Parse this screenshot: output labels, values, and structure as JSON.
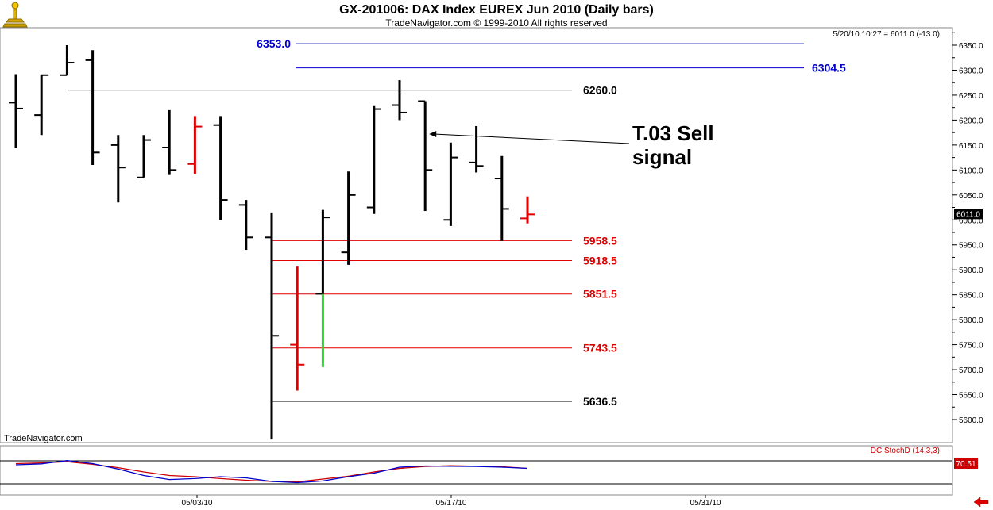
{
  "header": {
    "title": "GX-201006:  DAX Index EUREX Jun 2010  (Daily bars)",
    "copyright": "TradeNavigator.com © 1999-2010 All rights reserved",
    "quote": "5/20/10 10:27 = 6011.0 (-13.0)",
    "watermark": "TradeNavigator.com"
  },
  "colors": {
    "bar_default": "#000000",
    "bar_red": "#e00000",
    "bar_green": "#22dd22",
    "level_blue": "#0000cc",
    "level_red": "#e00000",
    "level_black": "#000000",
    "stoch_blue": "#0000cc",
    "stoch_red": "#cc0000"
  },
  "chart_data": {
    "type": "ohlc",
    "price_axis": {
      "range": [
        5560,
        6380
      ],
      "ticks": [
        "5600.0",
        "5650.0",
        "5700.0",
        "5750.0",
        "5800.0",
        "5850.0",
        "5900.0",
        "5950.0",
        "6000.0",
        "6050.0",
        "6100.0",
        "6150.0",
        "6200.0",
        "6250.0",
        "6300.0",
        "6350.0"
      ],
      "last_price_label": "6011.0"
    },
    "x_axis": {
      "ticks": [
        "05/03/10",
        "05/17/10",
        "05/31/10"
      ]
    },
    "bars": [
      {
        "x": 1,
        "o": 6235,
        "h": 6292,
        "l": 6145,
        "c": 6223,
        "color": "black"
      },
      {
        "x": 2,
        "o": 6210,
        "h": 6290,
        "l": 6170,
        "c": 6290,
        "color": "black"
      },
      {
        "x": 3,
        "o": 6290,
        "h": 6350,
        "l": 6290,
        "c": 6315,
        "color": "black"
      },
      {
        "x": 4,
        "o": 6320,
        "h": 6340,
        "l": 6110,
        "c": 6135,
        "color": "black"
      },
      {
        "x": 5,
        "o": 6150,
        "h": 6170,
        "l": 6035,
        "c": 6105,
        "color": "black"
      },
      {
        "x": 6,
        "o": 6085,
        "h": 6170,
        "l": 6085,
        "c": 6160,
        "color": "black"
      },
      {
        "x": 7,
        "o": 6145,
        "h": 6220,
        "l": 6090,
        "c": 6100,
        "color": "black"
      },
      {
        "x": 8,
        "o": 6112,
        "h": 6208,
        "l": 6092,
        "c": 6187,
        "color": "red"
      },
      {
        "x": 9,
        "o": 6190,
        "h": 6208,
        "l": 6000,
        "c": 6040,
        "color": "black"
      },
      {
        "x": 10,
        "o": 6030,
        "h": 6040,
        "l": 5940,
        "c": 5965,
        "color": "black"
      },
      {
        "x": 11,
        "o": 5965,
        "h": 6015,
        "l": 5560,
        "c": 5768,
        "color": "black"
      },
      {
        "x": 12,
        "o": 5750,
        "h": 5908,
        "l": 5658,
        "c": 5710,
        "color": "red"
      },
      {
        "x": 13,
        "o": 5852,
        "h": 6020,
        "l": 5850,
        "c": 6005,
        "color": "black"
      },
      {
        "x": 14,
        "o": 5935,
        "h": 6097,
        "l": 5910,
        "c": 6050,
        "color": "black"
      },
      {
        "x": 15,
        "o": 6025,
        "h": 6228,
        "l": 6012,
        "c": 6222,
        "color": "black"
      },
      {
        "x": 16,
        "o": 6230,
        "h": 6280,
        "l": 6200,
        "c": 6215,
        "color": "black"
      },
      {
        "x": 17,
        "o": 6238,
        "h": 6238,
        "l": 6018,
        "c": 6100,
        "color": "black"
      },
      {
        "x": 18,
        "o": 6000,
        "h": 6155,
        "l": 5988,
        "c": 6125,
        "color": "black"
      },
      {
        "x": 19,
        "o": 6115,
        "h": 6188,
        "l": 6095,
        "c": 6108,
        "color": "black"
      },
      {
        "x": 20,
        "o": 6083,
        "h": 6128,
        "l": 5958,
        "c": 6022,
        "color": "black"
      },
      {
        "x": 21,
        "o": 6003,
        "h": 6047,
        "l": 5993,
        "c": 6011,
        "color": "red"
      }
    ],
    "green_segment": {
      "x": 13,
      "from": 5851.5,
      "to": 5705,
      "color": "green"
    },
    "levels": [
      {
        "value": 6353.0,
        "label": "6353.0",
        "color": "blue",
        "label_side": "left",
        "x_from": 12.0,
        "x_to": 32.0
      },
      {
        "value": 6304.5,
        "label": "6304.5",
        "color": "blue",
        "label_side": "right",
        "x_from": 12.0,
        "x_to": 32.0
      },
      {
        "value": 6260.0,
        "label": "6260.0",
        "color": "black",
        "label_side": "right",
        "x_from": 3.0,
        "x_to": 23.0
      },
      {
        "value": 5958.5,
        "label": "5958.5",
        "color": "red",
        "label_side": "right",
        "x_from": 11.0,
        "x_to": 23.0
      },
      {
        "value": 5918.5,
        "label": "5918.5",
        "color": "red",
        "label_side": "right",
        "x_from": 11.0,
        "x_to": 23.0
      },
      {
        "value": 5851.5,
        "label": "5851.5",
        "color": "red",
        "label_side": "right",
        "x_from": 11.0,
        "x_to": 23.0
      },
      {
        "value": 5743.5,
        "label": "5743.5",
        "color": "red",
        "label_side": "right",
        "x_from": 11.0,
        "x_to": 23.0
      },
      {
        "value": 5636.5,
        "label": "5636.5",
        "color": "black",
        "label_side": "right",
        "x_from": 11.0,
        "x_to": 23.0
      }
    ],
    "annotation": {
      "line1": "T.03 Sell",
      "line2": "signal",
      "arrow_target": {
        "x": 17,
        "price": 6172
      }
    },
    "stochastic": {
      "label": "DC StochD (14,3,3)",
      "last_value_label": "70.51",
      "blue": [
        40,
        44,
        58,
        45,
        22,
        -5,
        -22,
        -18,
        -10,
        -15,
        -30,
        -35,
        -28,
        -10,
        5,
        30,
        35,
        34,
        33,
        30,
        25
      ],
      "red": [
        45,
        48,
        53,
        42,
        28,
        10,
        -5,
        -10,
        -18,
        -25,
        -30,
        -32,
        -20,
        -8,
        10,
        25,
        33,
        36,
        34,
        32,
        25
      ]
    }
  }
}
